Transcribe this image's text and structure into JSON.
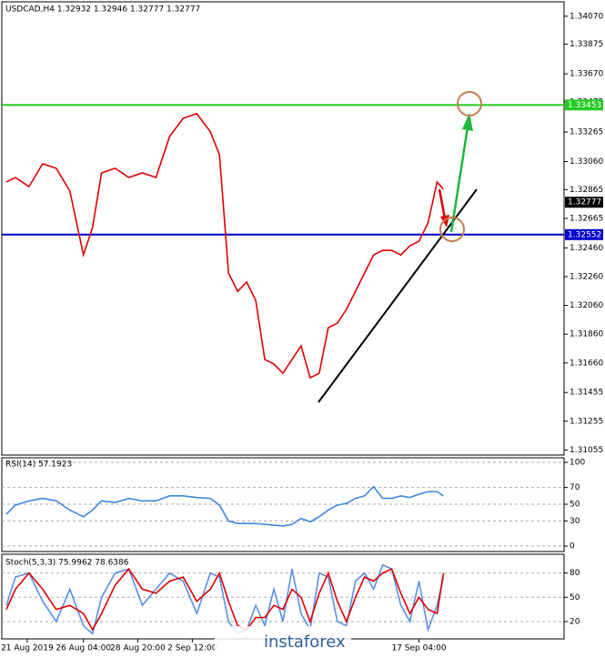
{
  "chart_data": [
    {
      "type": "line",
      "title": "USDCAD,H4  1.32932 1.32946 1.32777 1.32777",
      "watermark": "instaforex",
      "x": [
        5,
        15,
        30,
        45,
        60,
        75,
        90,
        100,
        110,
        125,
        140,
        155,
        170,
        185,
        200,
        215,
        230,
        240,
        250,
        260,
        270,
        280,
        290,
        300,
        310,
        320,
        330,
        340,
        350,
        360,
        370,
        380,
        390,
        400,
        410,
        420,
        430,
        440,
        450,
        460,
        470,
        480,
        487
      ],
      "xlim": [
        0,
        620
      ],
      "ylim": [
        1.3102,
        1.3417
      ],
      "yticks": [
        {
          "value": 1.3407,
          "label": "1.34070"
        },
        {
          "value": 1.33875,
          "label": "1.33875"
        },
        {
          "value": 1.3367,
          "label": "1.33670"
        },
        {
          "value": 1.33475,
          "label": "1.33475"
        },
        {
          "value": 1.33265,
          "label": "1.33265"
        },
        {
          "value": 1.3306,
          "label": "1.33060"
        },
        {
          "value": 1.32865,
          "label": "1.32865"
        },
        {
          "value": 1.32665,
          "label": "1.32665"
        },
        {
          "value": 1.3246,
          "label": "1.32460"
        },
        {
          "value": 1.3226,
          "label": "1.32260"
        },
        {
          "value": 1.3206,
          "label": "1.32060"
        },
        {
          "value": 1.3186,
          "label": "1.31860"
        },
        {
          "value": 1.3166,
          "label": "1.31660"
        },
        {
          "value": 1.31455,
          "label": "1.31455"
        },
        {
          "value": 1.31255,
          "label": "1.31255"
        },
        {
          "value": 1.31055,
          "label": "1.31055"
        }
      ],
      "levels": [
        {
          "value": 1.33453,
          "label": "1.33453",
          "color": "#22cc22"
        },
        {
          "value": 1.32777,
          "label": "1.32777",
          "color": "#000000"
        },
        {
          "value": 1.32552,
          "label": "1.32552",
          "color": "#0000cc"
        }
      ],
      "series": [
        {
          "name": "Close",
          "color": "#e00000",
          "values": [
            1.32918,
            1.32949,
            1.32886,
            1.33044,
            1.33013,
            1.32855,
            1.32411,
            1.32601,
            1.32981,
            1.33013,
            1.32949,
            1.32981,
            1.32949,
            1.33234,
            1.33361,
            1.33393,
            1.33266,
            1.33108,
            1.32285,
            1.32158,
            1.32222,
            1.32095,
            1.31684,
            1.31652,
            1.31589,
            1.31684,
            1.31779,
            1.31557,
            1.31589,
            1.31905,
            1.31937,
            1.32032,
            1.32158,
            1.32285,
            1.32411,
            1.32443,
            1.32443,
            1.32411,
            1.32475,
            1.32506,
            1.32633,
            1.32918,
            1.32867
          ]
        }
      ]
    },
    {
      "type": "line",
      "title": "RSI(14) 57.1923",
      "x": [
        5,
        15,
        30,
        45,
        60,
        75,
        90,
        100,
        110,
        125,
        140,
        155,
        170,
        185,
        200,
        215,
        230,
        240,
        250,
        260,
        270,
        280,
        290,
        300,
        310,
        320,
        330,
        340,
        350,
        360,
        370,
        380,
        390,
        400,
        410,
        420,
        430,
        440,
        450,
        460,
        470,
        480,
        487
      ],
      "xlim": [
        0,
        620
      ],
      "ylim": [
        -6.5,
        105.5
      ],
      "yticks": [
        100,
        70,
        50,
        30,
        0
      ],
      "series": [
        {
          "name": "RSI",
          "color": "#3d86e0",
          "values": [
            38,
            49,
            54,
            57,
            54,
            43,
            35,
            43,
            54,
            52,
            57,
            54,
            54,
            60,
            60,
            58,
            57,
            49,
            30,
            27,
            27,
            27,
            26,
            25,
            24,
            26,
            33,
            29,
            35,
            43,
            49,
            51,
            57,
            60,
            71,
            57,
            57,
            60,
            58,
            62,
            65,
            65,
            60
          ]
        }
      ]
    },
    {
      "type": "line",
      "title": "Stoch(5,3,3) 75.9962 78.6386",
      "x": [
        5,
        15,
        30,
        45,
        60,
        75,
        90,
        100,
        110,
        125,
        140,
        155,
        170,
        185,
        200,
        215,
        230,
        240,
        250,
        260,
        270,
        280,
        290,
        300,
        310,
        320,
        330,
        340,
        350,
        360,
        370,
        380,
        390,
        400,
        410,
        420,
        430,
        440,
        450,
        460,
        470,
        480,
        487
      ],
      "xlim": [
        0,
        620
      ],
      "ylim": [
        -1.4,
        103.2
      ],
      "yticks": [
        80,
        50,
        20
      ],
      "xticks": [
        {
          "value": 28,
          "label": "21 Aug 2019"
        },
        {
          "value": 90,
          "label": "26 Aug 04:00"
        },
        {
          "value": 150,
          "label": "28 Aug 20:00"
        },
        {
          "value": 210,
          "label": "2 Sep 12:00"
        },
        {
          "value": 460,
          "label": "17 Sep 04:00"
        }
      ],
      "series": [
        {
          "name": "Main",
          "color": "#5a8fe8",
          "values": [
            40,
            75,
            80,
            45,
            20,
            60,
            15,
            5,
            50,
            80,
            85,
            40,
            60,
            80,
            70,
            30,
            80,
            75,
            20,
            5,
            10,
            40,
            15,
            60,
            20,
            85,
            30,
            10,
            80,
            75,
            20,
            15,
            70,
            80,
            60,
            90,
            85,
            40,
            20,
            70,
            10,
            40,
            75
          ]
        },
        {
          "name": "Signal",
          "color": "#e00000",
          "values": [
            35,
            60,
            80,
            60,
            35,
            40,
            30,
            10,
            30,
            65,
            85,
            60,
            55,
            70,
            75,
            45,
            60,
            80,
            45,
            15,
            10,
            25,
            25,
            40,
            35,
            60,
            50,
            20,
            55,
            80,
            45,
            20,
            50,
            75,
            70,
            80,
            85,
            55,
            30,
            50,
            35,
            30,
            80
          ]
        }
      ]
    }
  ]
}
